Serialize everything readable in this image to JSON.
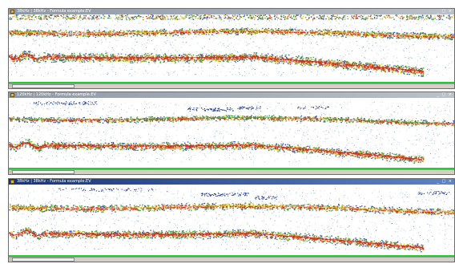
{
  "panes": [
    {
      "title": "38kHz | 38kHz - Formula example.EV",
      "window_buttons": "_ □ ×",
      "active": false,
      "colors": {
        "bottom_band": "#1fcf2b"
      }
    },
    {
      "title": "120kHz | 120kHz - Formula example.EV",
      "window_buttons": "_ □ ×",
      "active": false,
      "colors": {
        "bottom_band": "#1fcf2b"
      }
    },
    {
      "title": "38kHz | 38kHz - Formula example.EV",
      "window_buttons": "_ □ ×",
      "active": true,
      "colors": {
        "bottom_band": "#1fcf2b"
      }
    }
  ],
  "palette": {
    "echo_strong": "#c8341a",
    "echo_mid": "#f08a28",
    "echo_yellow": "#d9d23a",
    "echo_green": "#4fa546",
    "echo_blue": "#3a5ab8",
    "noise": "#8da0cc"
  }
}
